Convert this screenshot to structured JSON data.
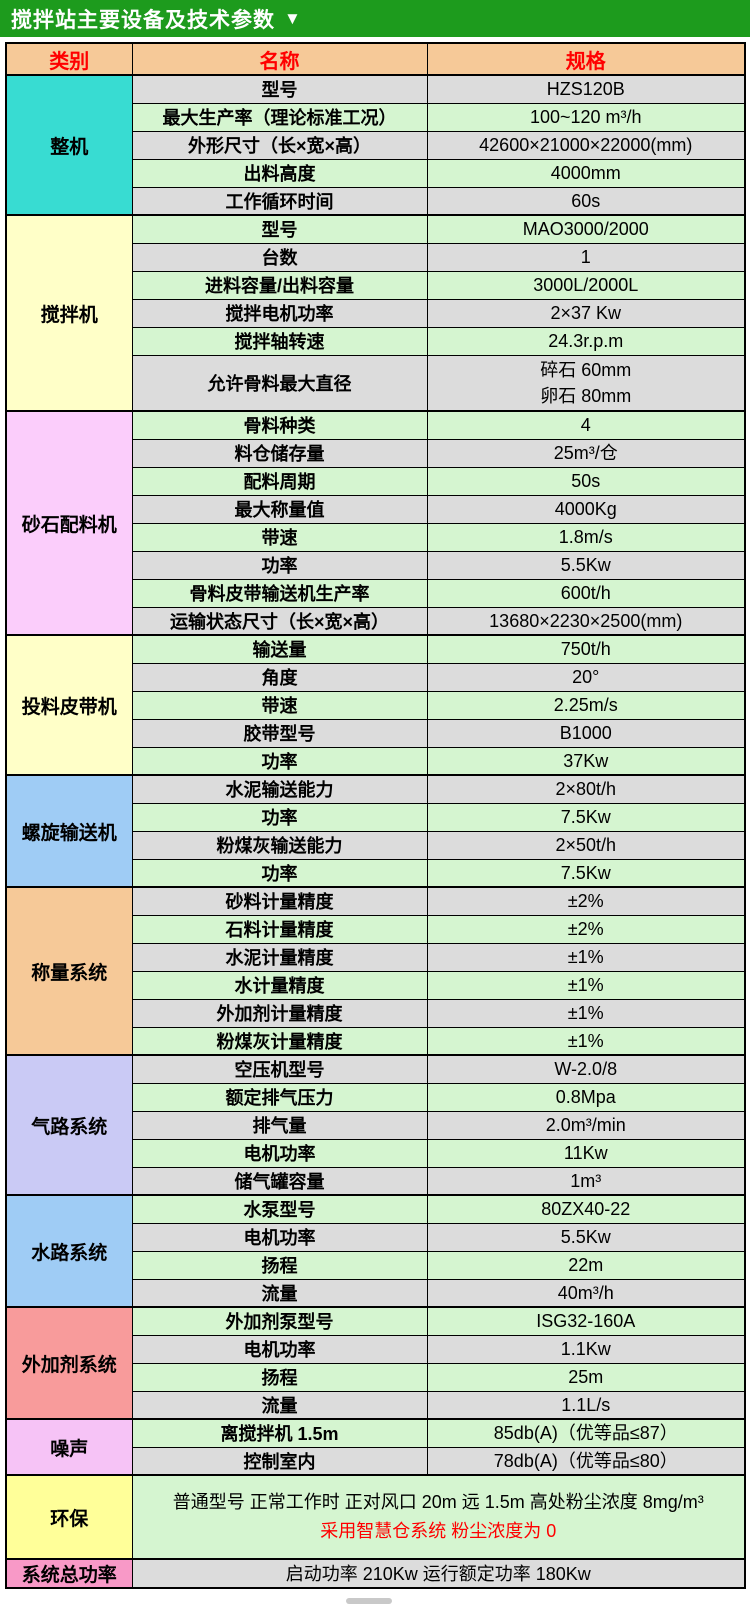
{
  "title": {
    "text": "搅拌站主要设备及技术参数",
    "collapse_icon": "▼"
  },
  "columns": {
    "category": "类别",
    "name": "名称",
    "spec": "规格"
  },
  "colors": {
    "title_bar": "#1d9b1d",
    "title_text": "#ffffff",
    "header_bg": "#f6c998",
    "header_text": "#ff0000",
    "row_gray": "#dcdcdc",
    "row_green": "#d5f5d0",
    "accent_red": "#ff0000",
    "border": "#000000"
  },
  "sections": [
    {
      "category": "整机",
      "color": "#38dcd2",
      "rows": [
        {
          "name": "型号",
          "spec": "HZS120B"
        },
        {
          "name": "最大生产率（理论标准工况）",
          "spec": "100~120 m³/h"
        },
        {
          "name": "外形尺寸（长×宽×高）",
          "spec": "42600×21000×22000(mm)"
        },
        {
          "name": "出料高度",
          "spec": "4000mm"
        },
        {
          "name": "工作循环时间",
          "spec": "60s"
        }
      ]
    },
    {
      "category": "搅拌机",
      "color": "#ffffc8",
      "rows": [
        {
          "name": "型号",
          "spec": "MAO3000/2000"
        },
        {
          "name": "台数",
          "spec": "1"
        },
        {
          "name": "进料容量/出料容量",
          "spec": "3000L/2000L"
        },
        {
          "name": "搅拌电机功率",
          "spec": "2×37 Kw"
        },
        {
          "name": "搅拌轴转速",
          "spec": "24.3r.p.m"
        },
        {
          "name": "允许骨料最大直径",
          "spec": "碎石 60mm\n卵石 80mm",
          "tall": 2
        }
      ]
    },
    {
      "category": "砂石配料机",
      "color": "#fbcdfb",
      "rows": [
        {
          "name": "骨料种类",
          "spec": "4"
        },
        {
          "name": "料仓储存量",
          "spec": "25m³/仓"
        },
        {
          "name": "配料周期",
          "spec": "50s"
        },
        {
          "name": "最大称量值",
          "spec": "4000Kg"
        },
        {
          "name": "带速",
          "spec": "1.8m/s"
        },
        {
          "name": "功率",
          "spec": "5.5Kw"
        },
        {
          "name": "骨料皮带输送机生产率",
          "spec": "600t/h"
        },
        {
          "name": "运输状态尺寸（长×宽×高）",
          "spec": "13680×2230×2500(mm)"
        }
      ]
    },
    {
      "category": "投料皮带机",
      "color": "#ffffc8",
      "rows": [
        {
          "name": "输送量",
          "spec": "750t/h"
        },
        {
          "name": "角度",
          "spec": "20°"
        },
        {
          "name": "带速",
          "spec": "2.25m/s"
        },
        {
          "name": "胶带型号",
          "spec": "B1000"
        },
        {
          "name": "功率",
          "spec": "37Kw"
        }
      ]
    },
    {
      "category": "螺旋输送机",
      "color": "#9fccf5",
      "rows": [
        {
          "name": "水泥输送能力",
          "spec": "2×80t/h"
        },
        {
          "name": "功率",
          "spec": "7.5Kw"
        },
        {
          "name": "粉煤灰输送能力",
          "spec": "2×50t/h"
        },
        {
          "name": "功率",
          "spec": "7.5Kw"
        }
      ]
    },
    {
      "category": "称量系统",
      "color": "#f6c998",
      "rows": [
        {
          "name": "砂料计量精度",
          "spec": "±2%"
        },
        {
          "name": "石料计量精度",
          "spec": "±2%"
        },
        {
          "name": "水泥计量精度",
          "spec": "±1%"
        },
        {
          "name": "水计量精度",
          "spec": "±1%"
        },
        {
          "name": "外加剂计量精度",
          "spec": "±1%"
        },
        {
          "name": "粉煤灰计量精度",
          "spec": "±1%"
        }
      ]
    },
    {
      "category": "气路系统",
      "color": "#cacaf5",
      "rows": [
        {
          "name": "空压机型号",
          "spec": "W-2.0/8"
        },
        {
          "name": "额定排气压力",
          "spec": "0.8Mpa"
        },
        {
          "name": "排气量",
          "spec": "2.0m³/min"
        },
        {
          "name": "电机功率",
          "spec": "11Kw"
        },
        {
          "name": "储气罐容量",
          "spec": "1m³"
        }
      ]
    },
    {
      "category": "水路系统",
      "color": "#9fccf5",
      "rows": [
        {
          "name": "水泵型号",
          "spec": "80ZX40-22"
        },
        {
          "name": "电机功率",
          "spec": "5.5Kw"
        },
        {
          "name": "扬程",
          "spec": "22m"
        },
        {
          "name": "流量",
          "spec": "40m³/h"
        }
      ]
    },
    {
      "category": "外加剂系统",
      "color": "#f89b9b",
      "rows": [
        {
          "name": "外加剂泵型号",
          "spec": "ISG32-160A"
        },
        {
          "name": "电机功率",
          "spec": "1.1Kw"
        },
        {
          "name": "扬程",
          "spec": "25m"
        },
        {
          "name": "流量",
          "spec": "1.1L/s"
        }
      ]
    },
    {
      "category": "噪声",
      "color": "#f6c3f6",
      "rows": [
        {
          "name": "离搅拌机 1.5m",
          "spec": "85db(A)（优等品≤87）"
        },
        {
          "name": "控制室内",
          "spec": "78db(A)（优等品≤80）"
        }
      ]
    },
    {
      "category": "环保",
      "color": "#ffff99",
      "rows": [
        {
          "merged": true,
          "tall": 3,
          "lines": [
            {
              "text": "普通型号 正常工作时 正对风口 20m 远 1.5m 高处粉尘浓度 8mg/m³",
              "red": false
            },
            {
              "text": "采用智慧仓系统 粉尘浓度为 0",
              "red": true
            }
          ]
        }
      ]
    },
    {
      "category": "系统总功率",
      "color": "#f899c7",
      "rows": [
        {
          "merged": true,
          "spec": "启动功率 210Kw 运行额定功率 180Kw"
        }
      ]
    }
  ]
}
